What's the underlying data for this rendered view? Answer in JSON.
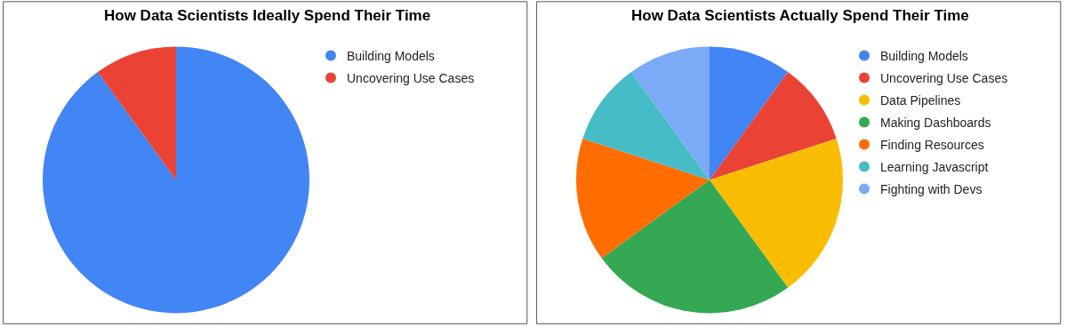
{
  "chart_data": [
    {
      "type": "pie",
      "title": "How Data Scientists Ideally Spend Their Time",
      "categories": [
        "Building Models",
        "Uncovering Use Cases"
      ],
      "values": [
        90,
        10
      ],
      "colors": [
        "#4285f4",
        "#ea4335"
      ],
      "legend": "top right"
    },
    {
      "type": "pie",
      "title": "How Data Scientists Actually Spend Their Time",
      "categories": [
        "Building Models",
        "Uncovering Use Cases",
        "Data Pipelines",
        "Making Dashboards",
        "Finding Resources",
        "Learning Javascript",
        "Fighting with Devs"
      ],
      "values": [
        10,
        10,
        20,
        25,
        15,
        10,
        10
      ],
      "colors": [
        "#4285f4",
        "#ea4335",
        "#fbbc04",
        "#34a853",
        "#ff6d01",
        "#46bdc6",
        "#7baaf7"
      ],
      "legend": "top right"
    }
  ]
}
